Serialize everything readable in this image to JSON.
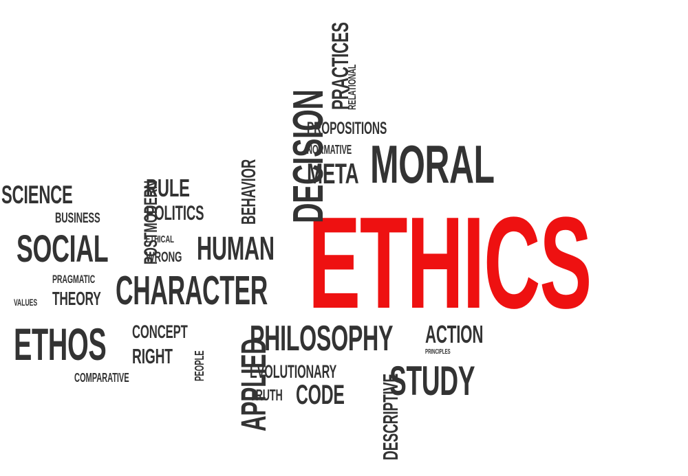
{
  "colors": {
    "background": "#ffffff",
    "text": "#333333",
    "accent": "#ee1111"
  },
  "words": [
    {
      "id": "ethics",
      "text": "ETHICS",
      "emphasis": "primary"
    },
    {
      "id": "moral",
      "text": "MORAL"
    },
    {
      "id": "meta",
      "text": "META"
    },
    {
      "id": "normative",
      "text": "NORMATIVE"
    },
    {
      "id": "propositions",
      "text": "PROPOSITIONS"
    },
    {
      "id": "practices",
      "text": "PRACTICES"
    },
    {
      "id": "relational",
      "text": "RELATIONAL"
    },
    {
      "id": "decision",
      "text": "DECISION"
    },
    {
      "id": "behavior",
      "text": "BEHAVIOR"
    },
    {
      "id": "rule",
      "text": "RULE"
    },
    {
      "id": "politics",
      "text": "POLITICS"
    },
    {
      "id": "postmodern",
      "text": "POSTMODERN"
    },
    {
      "id": "science",
      "text": "SCIENCE"
    },
    {
      "id": "business",
      "text": "BUSINESS"
    },
    {
      "id": "social",
      "text": "SOCIAL"
    },
    {
      "id": "ethical",
      "text": "ETHICAL"
    },
    {
      "id": "wrong",
      "text": "WRONG"
    },
    {
      "id": "human",
      "text": "HUMAN"
    },
    {
      "id": "pragmatic",
      "text": "PRAGMATIC"
    },
    {
      "id": "values",
      "text": "VALUES"
    },
    {
      "id": "theory",
      "text": "THEORY"
    },
    {
      "id": "character",
      "text": "CHARACTER"
    },
    {
      "id": "ethos",
      "text": "ETHOS"
    },
    {
      "id": "concept",
      "text": "CONCEPT"
    },
    {
      "id": "right",
      "text": "RIGHT"
    },
    {
      "id": "comparative",
      "text": "COMPARATIVE"
    },
    {
      "id": "people",
      "text": "PEOPLE"
    },
    {
      "id": "applied",
      "text": "APPLIED"
    },
    {
      "id": "philosophy",
      "text": "PHILOSOPHY"
    },
    {
      "id": "action",
      "text": "ACTION"
    },
    {
      "id": "principles",
      "text": "PRINCIPLES"
    },
    {
      "id": "evolutionary",
      "text": "EVOLUTIONARY"
    },
    {
      "id": "truth",
      "text": "TRUTH"
    },
    {
      "id": "code",
      "text": "CODE"
    },
    {
      "id": "descriptive",
      "text": "DESCRIPTIVE"
    },
    {
      "id": "study",
      "text": "STUDY"
    }
  ]
}
